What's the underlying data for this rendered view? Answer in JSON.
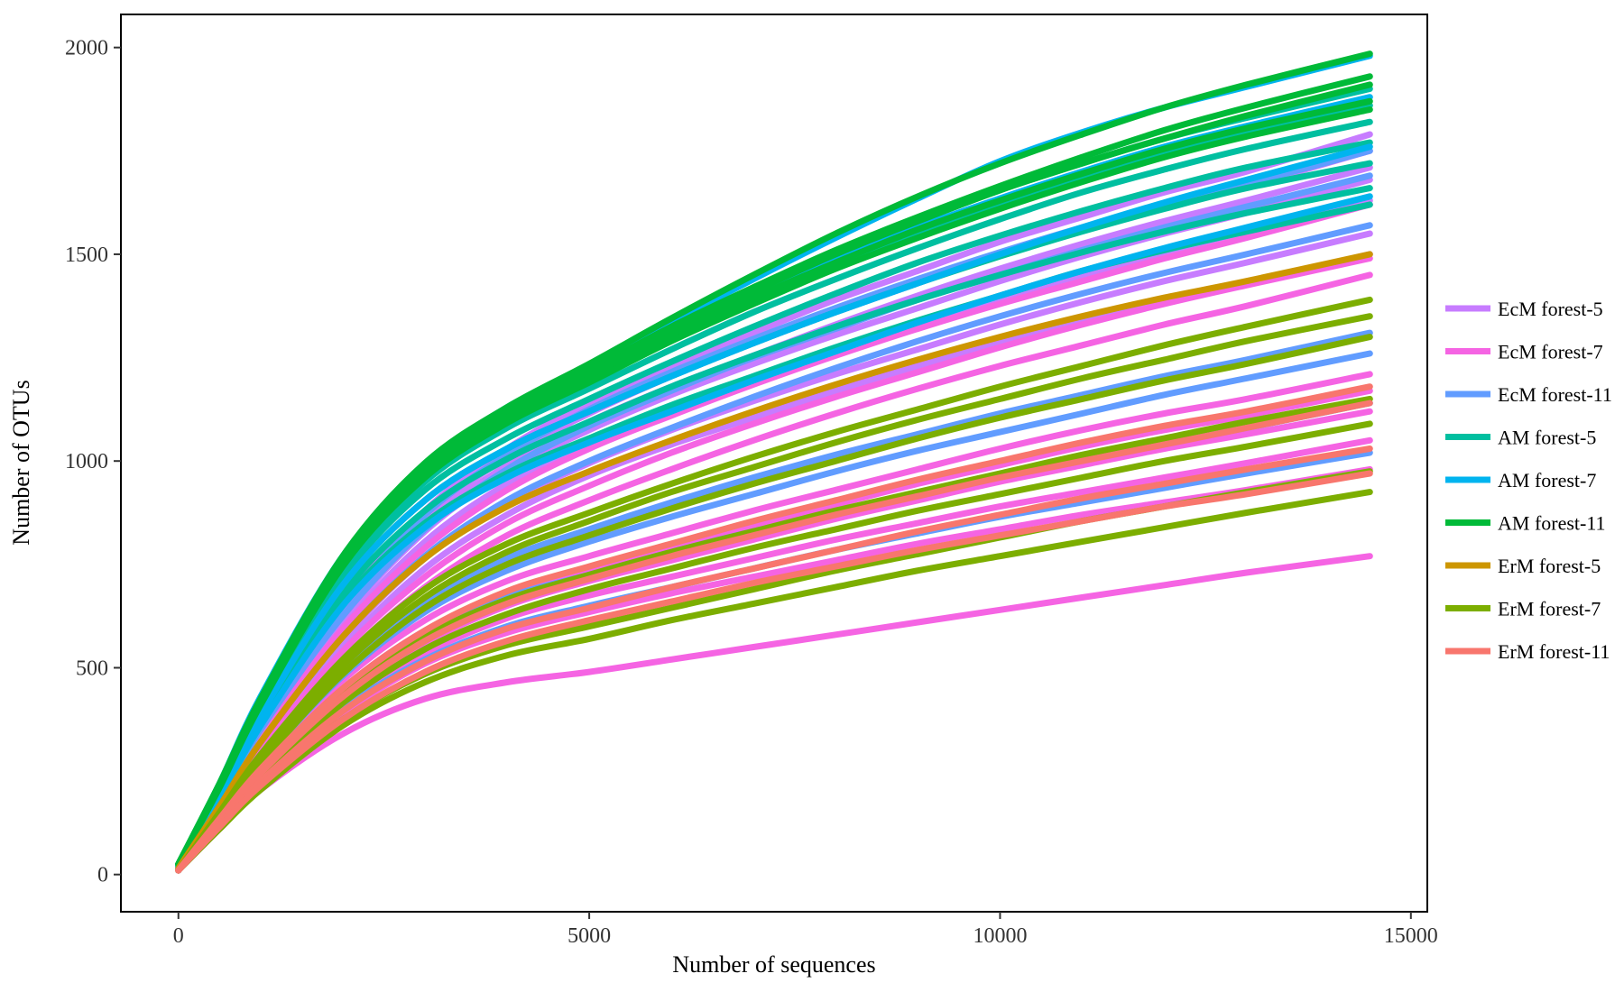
{
  "chart_data": {
    "type": "line",
    "title": "",
    "xlabel": "Number of sequences",
    "ylabel": "Number of OTUs",
    "xlim": [
      -700,
      15200
    ],
    "ylim": [
      -90,
      2080
    ],
    "x_ticks": [
      0,
      5000,
      10000,
      15000
    ],
    "x_tick_labels": [
      "0",
      "5000",
      "10000",
      "15000"
    ],
    "y_ticks": [
      0,
      500,
      1000,
      1500,
      2000
    ],
    "y_tick_labels": [
      "0",
      "500",
      "1000",
      "1500",
      "2000"
    ],
    "grid": false,
    "legend_position": "right",
    "x": [
      0,
      500,
      1000,
      2000,
      3000,
      4000,
      5000,
      6000,
      7000,
      8000,
      9000,
      10000,
      11000,
      12000,
      13000,
      14500
    ],
    "series": [
      {
        "name": "EcM forest-5",
        "color": "#C77CFF",
        "curves": [
          [
            10,
            190,
            370,
            660,
            880,
            1030,
            1140,
            1230,
            1310,
            1390,
            1460,
            1530,
            1590,
            1650,
            1700,
            1790
          ],
          [
            10,
            185,
            360,
            645,
            860,
            1010,
            1115,
            1205,
            1285,
            1360,
            1430,
            1500,
            1560,
            1615,
            1665,
            1750
          ],
          [
            10,
            180,
            355,
            635,
            845,
            990,
            1095,
            1180,
            1255,
            1330,
            1400,
            1465,
            1525,
            1580,
            1630,
            1710
          ],
          [
            10,
            175,
            345,
            620,
            830,
            975,
            1075,
            1160,
            1235,
            1305,
            1370,
            1435,
            1495,
            1550,
            1600,
            1680
          ],
          [
            10,
            170,
            335,
            600,
            805,
            945,
            1045,
            1125,
            1200,
            1270,
            1335,
            1395,
            1450,
            1505,
            1555,
            1630
          ],
          [
            10,
            160,
            315,
            570,
            765,
            900,
            995,
            1075,
            1145,
            1210,
            1270,
            1330,
            1385,
            1435,
            1480,
            1550
          ],
          [
            10,
            155,
            305,
            550,
            740,
            870,
            965,
            1040,
            1105,
            1170,
            1230,
            1285,
            1335,
            1385,
            1430,
            1500
          ]
        ]
      },
      {
        "name": "EcM forest-7",
        "color": "#F564E3",
        "curves": [
          [
            10,
            170,
            330,
            595,
            790,
            930,
            1030,
            1110,
            1185,
            1255,
            1320,
            1380,
            1435,
            1490,
            1540,
            1620
          ],
          [
            10,
            155,
            300,
            540,
            720,
            850,
            940,
            1020,
            1090,
            1155,
            1215,
            1275,
            1330,
            1380,
            1425,
            1490
          ],
          [
            10,
            150,
            290,
            520,
            695,
            820,
            905,
            980,
            1050,
            1115,
            1175,
            1230,
            1280,
            1330,
            1375,
            1450
          ],
          [
            10,
            140,
            265,
            470,
            615,
            710,
            770,
            825,
            880,
            930,
            980,
            1030,
            1075,
            1115,
            1150,
            1210
          ],
          [
            10,
            135,
            255,
            450,
            590,
            680,
            740,
            795,
            845,
            895,
            945,
            990,
            1035,
            1075,
            1110,
            1170
          ],
          [
            10,
            130,
            245,
            430,
            560,
            650,
            710,
            760,
            810,
            860,
            905,
            950,
            990,
            1030,
            1065,
            1120
          ],
          [
            10,
            125,
            235,
            410,
            535,
            620,
            675,
            720,
            765,
            810,
            850,
            890,
            925,
            960,
            995,
            1050
          ],
          [
            10,
            120,
            225,
            390,
            510,
            585,
            635,
            680,
            720,
            760,
            800,
            835,
            870,
            900,
            930,
            980
          ],
          [
            10,
            110,
            205,
            340,
            425,
            465,
            490,
            520,
            550,
            580,
            610,
            640,
            670,
            700,
            730,
            770
          ]
        ]
      },
      {
        "name": "EcM forest-11",
        "color": "#619CFF",
        "curves": [
          [
            15,
            185,
            365,
            650,
            870,
            1015,
            1125,
            1215,
            1295,
            1370,
            1440,
            1505,
            1565,
            1620,
            1670,
            1750
          ],
          [
            15,
            180,
            350,
            625,
            835,
            980,
            1085,
            1170,
            1250,
            1320,
            1390,
            1450,
            1510,
            1565,
            1615,
            1690
          ],
          [
            12,
            165,
            320,
            575,
            770,
            905,
            1000,
            1080,
            1155,
            1225,
            1290,
            1350,
            1405,
            1455,
            1500,
            1570
          ],
          [
            10,
            145,
            280,
            500,
            660,
            765,
            835,
            900,
            960,
            1015,
            1065,
            1115,
            1160,
            1205,
            1245,
            1310
          ],
          [
            10,
            140,
            270,
            480,
            635,
            735,
            805,
            865,
            920,
            975,
            1025,
            1070,
            1115,
            1160,
            1200,
            1260
          ],
          [
            10,
            135,
            255,
            445,
            580,
            670,
            725,
            780,
            830,
            875,
            920,
            965,
            1005,
            1045,
            1080,
            1140
          ],
          [
            10,
            120,
            230,
            400,
            520,
            600,
            650,
            695,
            740,
            785,
            825,
            865,
            900,
            935,
            970,
            1020
          ]
        ]
      },
      {
        "name": "AM forest-5",
        "color": "#00BFA0",
        "curves": [
          [
            25,
            215,
            420,
            760,
            980,
            1110,
            1215,
            1315,
            1410,
            1500,
            1580,
            1655,
            1720,
            1780,
            1830,
            1900
          ],
          [
            25,
            210,
            410,
            745,
            965,
            1095,
            1195,
            1295,
            1385,
            1470,
            1550,
            1620,
            1685,
            1745,
            1795,
            1860
          ],
          [
            25,
            205,
            405,
            735,
            950,
            1080,
            1175,
            1270,
            1360,
            1440,
            1515,
            1585,
            1650,
            1705,
            1755,
            1820
          ],
          [
            25,
            200,
            395,
            720,
            930,
            1055,
            1150,
            1240,
            1325,
            1405,
            1480,
            1545,
            1605,
            1660,
            1710,
            1770
          ],
          [
            25,
            195,
            385,
            700,
            905,
            1030,
            1120,
            1205,
            1285,
            1360,
            1430,
            1495,
            1555,
            1610,
            1660,
            1720
          ],
          [
            20,
            190,
            375,
            680,
            880,
            1005,
            1095,
            1180,
            1255,
            1325,
            1390,
            1450,
            1505,
            1555,
            1600,
            1660
          ],
          [
            20,
            185,
            365,
            660,
            850,
            970,
            1055,
            1135,
            1205,
            1275,
            1340,
            1400,
            1460,
            1510,
            1555,
            1620
          ]
        ]
      },
      {
        "name": "AM forest-7",
        "color": "#00B4EF",
        "curves": [
          [
            25,
            220,
            430,
            770,
            990,
            1130,
            1225,
            1335,
            1440,
            1540,
            1635,
            1725,
            1795,
            1855,
            1905,
            1980
          ],
          [
            25,
            215,
            420,
            755,
            975,
            1110,
            1205,
            1305,
            1400,
            1485,
            1565,
            1635,
            1700,
            1760,
            1810,
            1880
          ],
          [
            20,
            195,
            385,
            700,
            905,
            1030,
            1120,
            1205,
            1285,
            1360,
            1430,
            1500,
            1565,
            1625,
            1680,
            1760
          ],
          [
            20,
            185,
            360,
            650,
            840,
            960,
            1045,
            1120,
            1195,
            1265,
            1335,
            1400,
            1460,
            1515,
            1565,
            1640
          ]
        ]
      },
      {
        "name": "AM forest-11",
        "color": "#00BA38",
        "curves": [
          [
            25,
            220,
            425,
            770,
            995,
            1130,
            1235,
            1345,
            1450,
            1550,
            1640,
            1720,
            1790,
            1855,
            1910,
            1985
          ],
          [
            25,
            218,
            422,
            765,
            985,
            1120,
            1220,
            1325,
            1420,
            1510,
            1590,
            1665,
            1735,
            1800,
            1855,
            1930
          ],
          [
            25,
            215,
            418,
            760,
            978,
            1115,
            1212,
            1318,
            1410,
            1500,
            1580,
            1655,
            1720,
            1780,
            1835,
            1910
          ],
          [
            25,
            212,
            415,
            752,
            970,
            1105,
            1200,
            1305,
            1395,
            1480,
            1560,
            1630,
            1695,
            1755,
            1805,
            1870
          ],
          [
            25,
            210,
            410,
            745,
            960,
            1092,
            1190,
            1290,
            1380,
            1465,
            1540,
            1610,
            1675,
            1735,
            1785,
            1850
          ]
        ]
      },
      {
        "name": "ErM forest-5",
        "color": "#CD9600",
        "curves": [
          [
            15,
            165,
            320,
            575,
            765,
            890,
            975,
            1050,
            1120,
            1185,
            1245,
            1300,
            1350,
            1395,
            1435,
            1500
          ]
        ]
      },
      {
        "name": "ErM forest-7",
        "color": "#7CAE00",
        "curves": [
          [
            10,
            150,
            290,
            520,
            690,
            800,
            875,
            945,
            1010,
            1070,
            1125,
            1180,
            1230,
            1280,
            1325,
            1390
          ],
          [
            10,
            145,
            280,
            505,
            670,
            780,
            855,
            925,
            985,
            1045,
            1100,
            1150,
            1200,
            1245,
            1290,
            1350
          ],
          [
            10,
            140,
            270,
            485,
            645,
            750,
            820,
            885,
            945,
            1000,
            1055,
            1105,
            1150,
            1195,
            1235,
            1300
          ],
          [
            10,
            130,
            245,
            435,
            575,
            665,
            725,
            780,
            830,
            880,
            925,
            970,
            1015,
            1055,
            1095,
            1150
          ],
          [
            10,
            125,
            235,
            415,
            545,
            630,
            690,
            740,
            790,
            835,
            880,
            920,
            960,
            1000,
            1035,
            1090
          ],
          [
            10,
            115,
            215,
            375,
            485,
            555,
            600,
            645,
            690,
            735,
            775,
            815,
            855,
            890,
            925,
            975
          ],
          [
            10,
            110,
            205,
            360,
            465,
            530,
            570,
            615,
            655,
            695,
            735,
            770,
            805,
            840,
            875,
            925
          ]
        ]
      },
      {
        "name": "ErM forest-11",
        "color": "#F8766D",
        "curves": [
          [
            10,
            135,
            255,
            450,
            590,
            685,
            745,
            800,
            855,
            905,
            955,
            1000,
            1045,
            1085,
            1120,
            1180
          ],
          [
            10,
            130,
            245,
            430,
            565,
            655,
            715,
            770,
            820,
            870,
            915,
            960,
            1000,
            1040,
            1080,
            1140
          ],
          [
            10,
            120,
            225,
            395,
            515,
            595,
            645,
            695,
            740,
            785,
            830,
            870,
            910,
            945,
            980,
            1030
          ],
          [
            10,
            115,
            215,
            375,
            490,
            565,
            615,
            660,
            705,
            745,
            785,
            820,
            855,
            890,
            920,
            970
          ]
        ]
      }
    ]
  }
}
